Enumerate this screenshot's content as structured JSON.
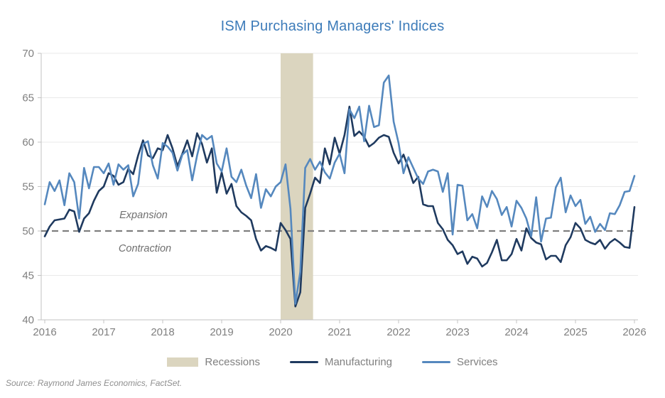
{
  "title": "ISM Purchasing Managers' Indices",
  "source": "Source: Raymond James Economics, FactSet.",
  "annotations": {
    "expansion": "Expansion",
    "contraction": "Contraction"
  },
  "legend": [
    {
      "label": "Recessions"
    },
    {
      "label": "Manufacturing"
    },
    {
      "label": "Services"
    }
  ],
  "colors": {
    "title": "#3c7bb9",
    "manufacturing": "#1f3a5f",
    "services": "#5588be",
    "recession": "#dbd5bf",
    "axis_text": "#7f7f7f",
    "annotation_text": "#6f6f6f",
    "threshold": "#7f7f7f",
    "gridline": "#e9e9e9",
    "axis_line": "#c3c3c3"
  },
  "chart_data": {
    "type": "line",
    "title": "ISM Purchasing Managers' Indices",
    "xlabel": "",
    "ylabel": "",
    "xlim": [
      2016,
      2026
    ],
    "ylim": [
      40,
      70
    ],
    "x_ticks": [
      2016,
      2017,
      2018,
      2019,
      2020,
      2021,
      2022,
      2023,
      2024,
      2025,
      2026
    ],
    "y_ticks": [
      40,
      45,
      50,
      55,
      60,
      65,
      70
    ],
    "grid": "horizontal-faint",
    "legend_position": "bottom",
    "frequency": "monthly",
    "x_start": 2016,
    "points_per_year": 12,
    "reference_line": {
      "value": 50,
      "style": "dashed",
      "label_above": "Expansion",
      "label_below": "Contraction"
    },
    "recession_band": {
      "x_start": 2020.0,
      "x_end": 2020.55
    },
    "series": [
      {
        "name": "Manufacturing",
        "color_key": "manufacturing",
        "values": [
          49.4,
          50.5,
          51.2,
          51.3,
          51.4,
          52.4,
          52.2,
          49.9,
          51.4,
          52.0,
          53.4,
          54.5,
          55.0,
          56.5,
          56.2,
          55.2,
          55.5,
          57.0,
          56.4,
          58.5,
          60.2,
          58.5,
          58.2,
          59.3,
          59.1,
          60.8,
          59.3,
          57.3,
          58.7,
          60.2,
          58.4,
          61.0,
          59.8,
          57.7,
          59.3,
          54.3,
          56.6,
          54.2,
          55.3,
          52.8,
          52.1,
          51.7,
          51.2,
          49.1,
          47.8,
          48.3,
          48.1,
          47.8,
          50.9,
          50.1,
          49.1,
          41.5,
          43.1,
          52.6,
          54.2,
          56.0,
          55.4,
          59.3,
          57.5,
          60.5,
          58.7,
          60.8,
          64.0,
          60.7,
          61.2,
          60.6,
          59.5,
          59.9,
          60.5,
          60.8,
          60.6,
          58.8,
          57.6,
          58.6,
          57.1,
          55.4,
          56.1,
          53.0,
          52.8,
          52.8,
          50.9,
          50.2,
          49.0,
          48.4,
          47.4,
          47.7,
          46.3,
          47.1,
          46.9,
          46.0,
          46.4,
          47.6,
          49.0,
          46.7,
          46.7,
          47.4,
          49.1,
          47.8,
          50.3,
          49.2,
          48.7,
          48.5,
          46.8,
          47.2,
          47.2,
          46.5,
          48.4,
          49.3,
          50.9,
          50.3,
          49.0,
          48.7,
          48.5,
          49.0,
          48.0,
          48.7,
          49.1,
          48.7,
          48.2,
          48.1,
          52.7
        ]
      },
      {
        "name": "Services",
        "color_key": "services",
        "values": [
          53.0,
          55.5,
          54.5,
          55.7,
          52.9,
          56.5,
          55.5,
          51.4,
          57.1,
          54.8,
          57.2,
          57.2,
          56.5,
          57.6,
          55.2,
          57.5,
          56.9,
          57.4,
          53.9,
          55.3,
          59.8,
          60.1,
          57.4,
          55.9,
          59.9,
          59.5,
          58.8,
          56.8,
          58.6,
          59.1,
          55.7,
          58.5,
          60.8,
          60.3,
          60.7,
          57.6,
          56.7,
          59.3,
          56.1,
          55.5,
          56.9,
          55.1,
          53.7,
          56.4,
          52.6,
          54.7,
          53.9,
          55.0,
          55.5,
          57.5,
          52.5,
          41.8,
          45.4,
          57.1,
          58.1,
          56.9,
          57.8,
          56.6,
          55.9,
          57.7,
          58.7,
          56.5,
          63.7,
          62.7,
          64.0,
          60.1,
          64.1,
          61.7,
          61.9,
          66.7,
          67.5,
          62.3,
          59.9,
          56.5,
          58.3,
          57.1,
          55.9,
          55.3,
          56.7,
          56.9,
          56.7,
          54.4,
          56.5,
          49.6,
          55.2,
          55.1,
          51.2,
          51.9,
          50.3,
          53.9,
          52.7,
          54.5,
          53.6,
          51.8,
          52.7,
          50.5,
          53.4,
          52.6,
          51.4,
          49.4,
          53.8,
          48.8,
          51.4,
          51.5,
          54.9,
          56.0,
          52.1,
          54.0,
          52.8,
          53.5,
          50.8,
          51.6,
          49.9,
          50.8,
          50.1,
          52.0,
          51.9,
          52.9,
          54.4,
          54.5,
          56.2
        ]
      }
    ]
  }
}
